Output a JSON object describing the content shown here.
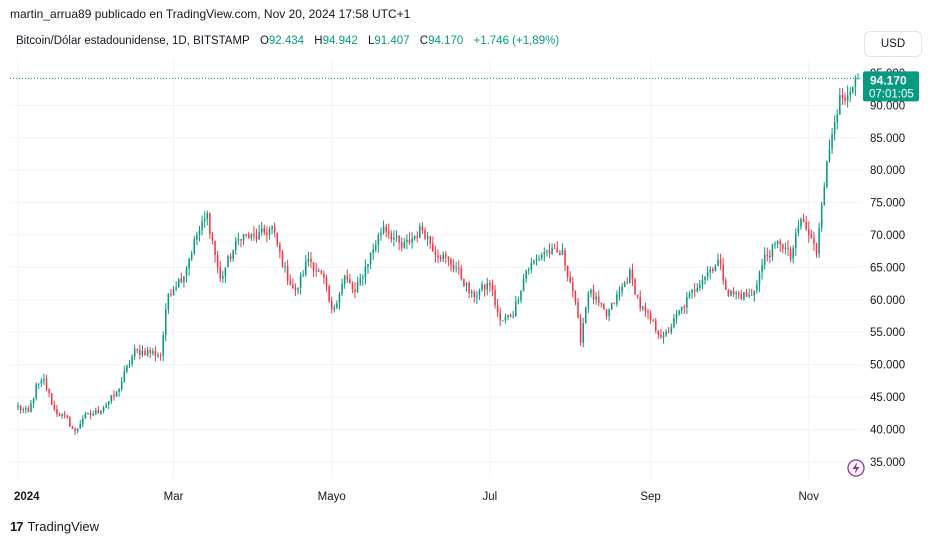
{
  "header": {
    "text": "martin_arrua89 publicado en TradingView.com, Nov 20, 2024 17:58 UTC+1"
  },
  "legend": {
    "symbol": "Bitcoin/Dólar estadounidense, 1D, BITSTAMP",
    "open_label": "O",
    "open": "92.434",
    "high_label": "H",
    "high": "94.942",
    "low_label": "L",
    "low": "91.407",
    "close_label": "C",
    "close": "94.170",
    "change": "+1.746 (+1,89%)"
  },
  "currency_button": "USD",
  "price_tag": {
    "price": "94.170",
    "countdown": "07:01:05"
  },
  "footer": {
    "logo": "17",
    "brand": "TradingView"
  },
  "colors": {
    "up": "#089981",
    "down": "#f23645",
    "grid": "#f0f3fa",
    "tag": "#089981"
  },
  "chart_data": {
    "type": "candlestick",
    "ylim": [
      32500,
      97000
    ],
    "y_ticks": [
      "35.000",
      "40.000",
      "45.000",
      "50.000",
      "55.000",
      "60.000",
      "65.000",
      "70.000",
      "75.000",
      "80.000",
      "85.000",
      "90.000",
      "95.000"
    ],
    "y_tick_values": [
      35000,
      40000,
      45000,
      50000,
      55000,
      60000,
      65000,
      70000,
      75000,
      80000,
      85000,
      90000,
      95000
    ],
    "x_ticks": [
      {
        "label": "2024",
        "date": "2024-01-01"
      },
      {
        "label": "Mar",
        "date": "2024-03-01"
      },
      {
        "label": "Mayo",
        "date": "2024-05-01"
      },
      {
        "label": "Jul",
        "date": "2024-07-01"
      },
      {
        "label": "Sep",
        "date": "2024-09-01"
      },
      {
        "label": "Nov",
        "date": "2024-11-01"
      }
    ],
    "x_range": [
      "2024-01-01",
      "2024-11-20"
    ],
    "last_price": 94170,
    "series": [
      {
        "date": "2024-01-01",
        "close": 43500
      },
      {
        "date": "2024-01-05",
        "close": 42500
      },
      {
        "date": "2024-01-08",
        "close": 46500
      },
      {
        "date": "2024-01-11",
        "close": 47500
      },
      {
        "date": "2024-01-15",
        "close": 43000
      },
      {
        "date": "2024-01-20",
        "close": 41500
      },
      {
        "date": "2024-01-23",
        "close": 39500
      },
      {
        "date": "2024-01-26",
        "close": 41800
      },
      {
        "date": "2024-02-01",
        "close": 42800
      },
      {
        "date": "2024-02-08",
        "close": 45500
      },
      {
        "date": "2024-02-12",
        "close": 49500
      },
      {
        "date": "2024-02-15",
        "close": 52000
      },
      {
        "date": "2024-02-20",
        "close": 52000
      },
      {
        "date": "2024-02-25",
        "close": 51500
      },
      {
        "date": "2024-02-28",
        "close": 61000
      },
      {
        "date": "2024-03-05",
        "close": 64000
      },
      {
        "date": "2024-03-10",
        "close": 70000
      },
      {
        "date": "2024-03-14",
        "close": 73000
      },
      {
        "date": "2024-03-19",
        "close": 63000
      },
      {
        "date": "2024-03-22",
        "close": 66000
      },
      {
        "date": "2024-03-27",
        "close": 70000
      },
      {
        "date": "2024-04-01",
        "close": 69500
      },
      {
        "date": "2024-04-08",
        "close": 71000
      },
      {
        "date": "2024-04-13",
        "close": 64500
      },
      {
        "date": "2024-04-17",
        "close": 61000
      },
      {
        "date": "2024-04-22",
        "close": 66500
      },
      {
        "date": "2024-04-28",
        "close": 63000
      },
      {
        "date": "2024-05-01",
        "close": 58000
      },
      {
        "date": "2024-05-06",
        "close": 63500
      },
      {
        "date": "2024-05-10",
        "close": 61000
      },
      {
        "date": "2024-05-15",
        "close": 66000
      },
      {
        "date": "2024-05-21",
        "close": 71500
      },
      {
        "date": "2024-05-28",
        "close": 68000
      },
      {
        "date": "2024-06-05",
        "close": 71000
      },
      {
        "date": "2024-06-10",
        "close": 67500
      },
      {
        "date": "2024-06-18",
        "close": 65000
      },
      {
        "date": "2024-06-24",
        "close": 60500
      },
      {
        "date": "2024-07-01",
        "close": 62500
      },
      {
        "date": "2024-07-05",
        "close": 56500
      },
      {
        "date": "2024-07-10",
        "close": 58000
      },
      {
        "date": "2024-07-15",
        "close": 64500
      },
      {
        "date": "2024-07-22",
        "close": 67500
      },
      {
        "date": "2024-07-29",
        "close": 67000
      },
      {
        "date": "2024-08-02",
        "close": 61500
      },
      {
        "date": "2024-08-05",
        "close": 54000
      },
      {
        "date": "2024-08-08",
        "close": 61500
      },
      {
        "date": "2024-08-15",
        "close": 57500
      },
      {
        "date": "2024-08-24",
        "close": 64000
      },
      {
        "date": "2024-08-28",
        "close": 59000
      },
      {
        "date": "2024-09-06",
        "close": 54000
      },
      {
        "date": "2024-09-12",
        "close": 58000
      },
      {
        "date": "2024-09-20",
        "close": 63000
      },
      {
        "date": "2024-09-27",
        "close": 66000
      },
      {
        "date": "2024-10-01",
        "close": 61000
      },
      {
        "date": "2024-10-10",
        "close": 60500
      },
      {
        "date": "2024-10-15",
        "close": 66500
      },
      {
        "date": "2024-10-21",
        "close": 69000
      },
      {
        "date": "2024-10-25",
        "close": 66500
      },
      {
        "date": "2024-10-29",
        "close": 72500
      },
      {
        "date": "2024-11-04",
        "close": 67500
      },
      {
        "date": "2024-11-06",
        "close": 75500
      },
      {
        "date": "2024-11-11",
        "close": 88500
      },
      {
        "date": "2024-11-13",
        "close": 90500
      },
      {
        "date": "2024-11-16",
        "close": 90500
      },
      {
        "date": "2024-11-20",
        "close": 94170
      }
    ]
  }
}
